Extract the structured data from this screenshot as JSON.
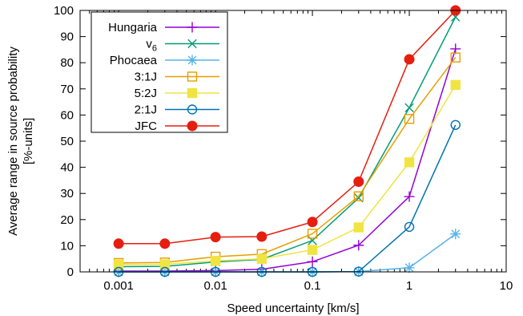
{
  "chart_data": {
    "type": "line",
    "xscale": "log",
    "xlim": [
      0.0004,
      10
    ],
    "ylim": [
      0,
      100
    ],
    "xticks": [
      0.001,
      0.01,
      0.1,
      1,
      10
    ],
    "xtick_labels": [
      "0.001",
      "0.01",
      "0.1",
      "1",
      "10"
    ],
    "yticks": [
      0,
      10,
      20,
      30,
      40,
      50,
      60,
      70,
      80,
      90,
      100
    ],
    "xlabel": "Speed uncertainty [km/s]",
    "ylabel_line1": "Average range in source probability",
    "ylabel_line2": "[%-units]",
    "legend_position": "top-left",
    "x": [
      0.001,
      0.003,
      0.01,
      0.03,
      0.1,
      0.3,
      1,
      3
    ],
    "series": [
      {
        "name": "Hungaria",
        "color": "#9400d3",
        "marker": "plus",
        "values": [
          0.3,
          0.3,
          0.5,
          1.0,
          3.9,
          10.2,
          28.8,
          85.3
        ]
      },
      {
        "name": "v",
        "name_sub": "6",
        "color": "#009e73",
        "marker": "x",
        "values": [
          2.0,
          2.1,
          3.8,
          4.8,
          12.0,
          28.3,
          62.8,
          97.5
        ]
      },
      {
        "name": "Phocaea",
        "color": "#56b4e9",
        "marker": "star",
        "values": [
          0.0,
          0.0,
          0.0,
          0.0,
          0.0,
          0.1,
          1.6,
          14.5
        ]
      },
      {
        "name": "3:1J",
        "color": "#e69f00",
        "marker": "square-open",
        "values": [
          3.4,
          3.6,
          5.8,
          6.8,
          14.6,
          28.9,
          58.5,
          82.0
        ]
      },
      {
        "name": "5:2J",
        "color": "#f0e442",
        "marker": "square-filled",
        "values": [
          2.8,
          2.9,
          4.2,
          5.0,
          8.4,
          17.0,
          41.9,
          71.5
        ]
      },
      {
        "name": "2:1J",
        "color": "#0072b2",
        "marker": "circle-open",
        "values": [
          0.0,
          0.0,
          0.0,
          0.0,
          0.0,
          0.1,
          17.2,
          56.2
        ]
      },
      {
        "name": "JFC",
        "color": "#e51e10",
        "marker": "circle-filled",
        "values": [
          10.8,
          10.8,
          13.3,
          13.5,
          19.1,
          34.5,
          81.3,
          100.0
        ]
      }
    ]
  }
}
